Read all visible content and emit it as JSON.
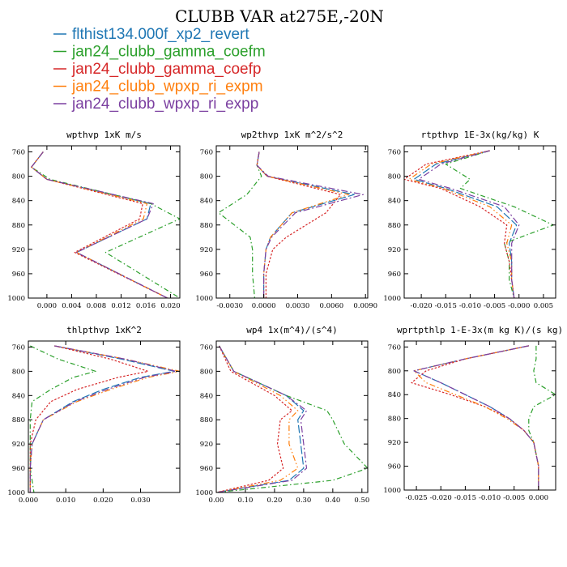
{
  "figure": {
    "title": "CLUBB VAR at275E,-20N"
  },
  "colors": {
    "flthist134.000f_xp2_revert": "#1f77b4",
    "jan24_clubb_gamma_coefm": "#2ca02c",
    "jan24_clubb_gamma_coefp": "#d62728",
    "jan24_clubb_wpxp_ri_expm": "#ff7f0e",
    "jan24_clubb_wpxp_ri_expp": "#7b3fa0"
  },
  "legend": [
    "flthist134.000f_xp2_revert",
    "jan24_clubb_gamma_coefm",
    "jan24_clubb_gamma_coefp",
    "jan24_clubb_wpxp_ri_expm",
    "jan24_clubb_wpxp_ri_expp"
  ],
  "chart_data": [
    {
      "type": "line",
      "title": "wpthvp  1xK m/s",
      "xlim": [
        -0.003,
        0.0215
      ],
      "ylim": [
        1000,
        750
      ],
      "xticks": [
        0.0,
        0.004,
        0.008,
        0.012,
        0.016,
        0.02
      ],
      "xticklabels": [
        "0.000",
        "0.004",
        "0.008",
        "0.012",
        "0.016",
        "0.020"
      ],
      "yticks": [
        760,
        800,
        840,
        880,
        920,
        960,
        1000
      ],
      "y": [
        760,
        785,
        805,
        845,
        870,
        925,
        1000
      ],
      "series": [
        {
          "name": "flthist134.000f_xp2_revert",
          "x": [
            -0.0006,
            -0.0025,
            0.0,
            0.0168,
            0.0162,
            0.0048,
            0.0195
          ]
        },
        {
          "name": "jan24_clubb_gamma_coefm",
          "x": [
            -0.0006,
            -0.0025,
            0.0005,
            0.0168,
            0.0215,
            0.0095,
            0.0215
          ]
        },
        {
          "name": "jan24_clubb_gamma_coefp",
          "x": [
            -0.0006,
            -0.0025,
            0.0,
            0.0155,
            0.015,
            0.0045,
            0.0195
          ]
        },
        {
          "name": "jan24_clubb_wpxp_ri_expm",
          "x": [
            -0.0006,
            -0.0025,
            0.0,
            0.0162,
            0.0156,
            0.0048,
            0.0195
          ]
        },
        {
          "name": "jan24_clubb_wpxp_ri_expp",
          "x": [
            -0.0006,
            -0.0025,
            0.0,
            0.0172,
            0.0162,
            0.0048,
            0.0195
          ]
        }
      ]
    },
    {
      "type": "line",
      "title": "wp2thvp  1xK m^2/s^2",
      "xlim": [
        -0.0042,
        0.0092
      ],
      "ylim": [
        1000,
        750
      ],
      "xticks": [
        -0.003,
        0.0,
        0.003,
        0.006,
        0.009
      ],
      "xticklabels": [
        "-0.0030",
        "0.0000",
        "0.0030",
        "0.0060",
        "0.0090"
      ],
      "yticks": [
        760,
        800,
        840,
        880,
        920,
        960,
        1000
      ],
      "y": [
        760,
        782,
        800,
        830,
        860,
        900,
        920,
        960,
        1000
      ],
      "series": [
        {
          "name": "flthist134.000f_xp2_revert",
          "x": [
            -0.0004,
            -0.0006,
            0.0003,
            0.008,
            0.0025,
            0.0006,
            0.0002,
            0.0,
            0.0
          ]
        },
        {
          "name": "jan24_clubb_gamma_coefm",
          "x": [
            -0.0004,
            -0.0006,
            -0.0002,
            -0.0015,
            -0.004,
            -0.0012,
            -0.001,
            -0.001,
            -0.0008
          ]
        },
        {
          "name": "jan24_clubb_gamma_coefp",
          "x": [
            -0.0004,
            -0.0006,
            0.0003,
            0.0068,
            0.0055,
            0.002,
            0.0008,
            0.0002,
            0.0002
          ]
        },
        {
          "name": "jan24_clubb_wpxp_ri_expm",
          "x": [
            -0.0004,
            -0.0006,
            0.0003,
            0.0075,
            0.0025,
            0.0006,
            0.0002,
            0.0,
            0.0
          ]
        },
        {
          "name": "jan24_clubb_wpxp_ri_expp",
          "x": [
            -0.0004,
            -0.0006,
            0.0004,
            0.0088,
            0.0028,
            0.0007,
            0.0002,
            0.0,
            0.0
          ]
        }
      ]
    },
    {
      "type": "line",
      "title": "rtpthvp  1E-3x(kg/kg) K",
      "xlim": [
        -0.0235,
        0.0075
      ],
      "ylim": [
        1000,
        750
      ],
      "xticks": [
        -0.02,
        -0.015,
        -0.01,
        -0.005,
        0.0,
        0.005
      ],
      "xticklabels": [
        "-0.020",
        "-0.015",
        "-0.010",
        "-0.005",
        "-0.000",
        "0.005"
      ],
      "yticks": [
        760,
        800,
        840,
        880,
        920,
        960,
        1000
      ],
      "y": [
        758,
        780,
        805,
        820,
        850,
        880,
        910,
        940,
        970,
        1000
      ],
      "series": [
        {
          "name": "flthist134.000f_xp2_revert",
          "x": [
            -0.006,
            -0.017,
            -0.0215,
            -0.015,
            -0.0045,
            -0.0005,
            -0.002,
            -0.0015,
            -0.0015,
            -0.001
          ]
        },
        {
          "name": "jan24_clubb_gamma_coefm",
          "x": [
            -0.006,
            -0.015,
            -0.01,
            -0.012,
            -0.001,
            0.007,
            -0.003,
            -0.002,
            -0.002,
            -0.001
          ]
        },
        {
          "name": "jan24_clubb_gamma_coefp",
          "x": [
            -0.006,
            -0.019,
            -0.0235,
            -0.016,
            -0.008,
            -0.0025,
            -0.003,
            -0.002,
            -0.0015,
            -0.001
          ]
        },
        {
          "name": "jan24_clubb_wpxp_ri_expm",
          "x": [
            -0.006,
            -0.018,
            -0.0225,
            -0.0155,
            -0.006,
            -0.0015,
            -0.0025,
            -0.0015,
            -0.0015,
            -0.001
          ]
        },
        {
          "name": "jan24_clubb_wpxp_ri_expp",
          "x": [
            -0.006,
            -0.016,
            -0.0205,
            -0.014,
            -0.003,
            0.0,
            -0.0015,
            -0.0015,
            -0.0015,
            -0.001
          ]
        }
      ]
    },
    {
      "type": "line",
      "title": "thlpthvp  1xK^2",
      "xlim": [
        0.0,
        0.0405
      ],
      "ylim": [
        1000,
        750
      ],
      "xticks": [
        0.0,
        0.01,
        0.02,
        0.03
      ],
      "xticklabels": [
        "0.000",
        "0.010",
        "0.020",
        "0.030"
      ],
      "yticks": [
        760,
        800,
        840,
        880,
        920,
        960,
        1000
      ],
      "y": [
        758,
        780,
        800,
        810,
        830,
        850,
        880,
        920,
        960,
        1000
      ],
      "series": [
        {
          "name": "flthist134.000f_xp2_revert",
          "x": [
            0.007,
            0.025,
            0.039,
            0.03,
            0.02,
            0.012,
            0.004,
            0.001,
            0.0005,
            0.0005
          ]
        },
        {
          "name": "jan24_clubb_gamma_coefm",
          "x": [
            0.0005,
            0.008,
            0.018,
            0.012,
            0.006,
            0.001,
            0.0005,
            0.0005,
            0.0005,
            0.0015
          ]
        },
        {
          "name": "jan24_clubb_gamma_coefp",
          "x": [
            0.007,
            0.022,
            0.032,
            0.024,
            0.013,
            0.006,
            0.002,
            0.0005,
            0.0005,
            0.0005
          ]
        },
        {
          "name": "jan24_clubb_wpxp_ri_expm",
          "x": [
            0.007,
            0.026,
            0.0405,
            0.032,
            0.022,
            0.013,
            0.004,
            0.001,
            0.0005,
            0.0005
          ]
        },
        {
          "name": "jan24_clubb_wpxp_ri_expp",
          "x": [
            0.007,
            0.026,
            0.0395,
            0.031,
            0.021,
            0.0125,
            0.004,
            0.001,
            0.0005,
            0.0005
          ]
        }
      ]
    },
    {
      "type": "line",
      "title": "wp4  1x(m^4)/(s^4)",
      "xlim": [
        0.0,
        0.52
      ],
      "ylim": [
        1000,
        750
      ],
      "xticks": [
        0.0,
        0.1,
        0.2,
        0.3,
        0.4,
        0.5
      ],
      "xticklabels": [
        "0.00",
        "0.10",
        "0.20",
        "0.30",
        "0.40",
        "0.50"
      ],
      "yticks": [
        760,
        800,
        840,
        880,
        920,
        960,
        1000
      ],
      "y": [
        758,
        800,
        840,
        865,
        880,
        920,
        960,
        980,
        1000
      ],
      "series": [
        {
          "name": "flthist134.000f_xp2_revert",
          "x": [
            0.01,
            0.06,
            0.24,
            0.3,
            0.28,
            0.29,
            0.3,
            0.25,
            0.0
          ]
        },
        {
          "name": "jan24_clubb_gamma_coefm",
          "x": [
            0.01,
            0.06,
            0.24,
            0.38,
            0.4,
            0.44,
            0.52,
            0.4,
            0.0
          ]
        },
        {
          "name": "jan24_clubb_gamma_coefp",
          "x": [
            0.01,
            0.05,
            0.2,
            0.26,
            0.22,
            0.21,
            0.23,
            0.18,
            0.0
          ]
        },
        {
          "name": "jan24_clubb_wpxp_ri_expm",
          "x": [
            0.01,
            0.06,
            0.22,
            0.28,
            0.25,
            0.25,
            0.28,
            0.22,
            0.0
          ]
        },
        {
          "name": "jan24_clubb_wpxp_ri_expp",
          "x": [
            0.01,
            0.06,
            0.24,
            0.31,
            0.29,
            0.3,
            0.31,
            0.26,
            0.0
          ]
        }
      ]
    },
    {
      "type": "line",
      "title": "wprtpthlp  1-E-3x(m kg K)/(s kg)",
      "xlim": [
        -0.0275,
        0.0035
      ],
      "ylim": [
        1000,
        750
      ],
      "xticks": [
        -0.025,
        -0.02,
        -0.015,
        -0.01,
        -0.005,
        0.0
      ],
      "xticklabels": [
        "-0.025",
        "-0.020",
        "-0.015",
        "-0.010",
        "-0.005",
        "0.000"
      ],
      "yticks": [
        760,
        800,
        840,
        880,
        920,
        960,
        1000
      ],
      "y": [
        758,
        780,
        800,
        820,
        840,
        860,
        880,
        900,
        920,
        960,
        1000
      ],
      "series": [
        {
          "name": "flthist134.000f_xp2_revert",
          "x": [
            -0.002,
            -0.015,
            -0.0255,
            -0.02,
            -0.015,
            -0.01,
            -0.006,
            -0.003,
            -0.001,
            0.0,
            0.0
          ]
        },
        {
          "name": "jan24_clubb_gamma_coefm",
          "x": [
            -0.0005,
            -0.0005,
            -0.001,
            -0.0005,
            0.0035,
            -0.001,
            -0.002,
            -0.002,
            -0.001,
            0.0,
            0.0
          ]
        },
        {
          "name": "jan24_clubb_gamma_coefp",
          "x": [
            -0.002,
            -0.015,
            -0.023,
            -0.026,
            -0.018,
            -0.011,
            -0.006,
            -0.003,
            -0.001,
            0.0,
            0.0
          ]
        },
        {
          "name": "jan24_clubb_wpxp_ri_expm",
          "x": [
            -0.002,
            -0.015,
            -0.0255,
            -0.023,
            -0.017,
            -0.011,
            -0.0065,
            -0.003,
            -0.001,
            0.0,
            0.0
          ]
        },
        {
          "name": "jan24_clubb_wpxp_ri_expp",
          "x": [
            -0.002,
            -0.015,
            -0.0255,
            -0.02,
            -0.015,
            -0.01,
            -0.006,
            -0.003,
            -0.001,
            0.0,
            0.0
          ]
        }
      ]
    }
  ]
}
